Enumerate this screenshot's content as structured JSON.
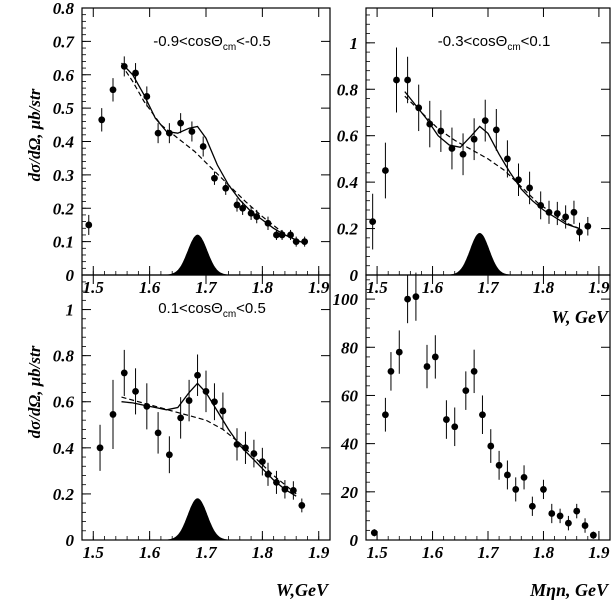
{
  "figure": {
    "ylabel_top": "dσ/dΩ, μb/str",
    "ylabel_bottom": "dσ/dΩ, μb/str"
  },
  "chart_data": [
    {
      "type": "scatter",
      "panel": "top-left",
      "annotation": {
        "pre": "-0.9<cosΘ",
        "sub": "cm",
        "post": "<-0.5"
      },
      "xlabel": "",
      "ylabel": "dσ/dΩ, μb/str",
      "xlim": [
        1.48,
        1.92
      ],
      "ylim": [
        0,
        0.8
      ],
      "xticks": [
        "1.5",
        "1.6",
        "1.7",
        "1.8",
        "1.9"
      ],
      "xtick_values": [
        1.5,
        1.6,
        1.7,
        1.8,
        1.9
      ],
      "yticks": [
        "0",
        "0.1",
        "0.2",
        "0.3",
        "0.4",
        "0.5",
        "0.6",
        "0.7",
        "0.8"
      ],
      "ytick_values": [
        0,
        0.1,
        0.2,
        0.3,
        0.4,
        0.5,
        0.6,
        0.7,
        0.8
      ],
      "points": [
        {
          "x": 1.492,
          "y": 0.15,
          "err": 0.03
        },
        {
          "x": 1.515,
          "y": 0.465,
          "err": 0.035
        },
        {
          "x": 1.535,
          "y": 0.555,
          "err": 0.035
        },
        {
          "x": 1.555,
          "y": 0.625,
          "err": 0.03
        },
        {
          "x": 1.575,
          "y": 0.605,
          "err": 0.03
        },
        {
          "x": 1.595,
          "y": 0.535,
          "err": 0.03
        },
        {
          "x": 1.615,
          "y": 0.425,
          "err": 0.03
        },
        {
          "x": 1.635,
          "y": 0.425,
          "err": 0.03
        },
        {
          "x": 1.655,
          "y": 0.455,
          "err": 0.03
        },
        {
          "x": 1.675,
          "y": 0.43,
          "err": 0.03
        },
        {
          "x": 1.695,
          "y": 0.385,
          "err": 0.03
        },
        {
          "x": 1.715,
          "y": 0.29,
          "err": 0.02
        },
        {
          "x": 1.735,
          "y": 0.26,
          "err": 0.02
        },
        {
          "x": 1.755,
          "y": 0.21,
          "err": 0.02
        },
        {
          "x": 1.765,
          "y": 0.2,
          "err": 0.02
        },
        {
          "x": 1.78,
          "y": 0.185,
          "err": 0.02
        },
        {
          "x": 1.79,
          "y": 0.175,
          "err": 0.02
        },
        {
          "x": 1.81,
          "y": 0.155,
          "err": 0.02
        },
        {
          "x": 1.825,
          "y": 0.12,
          "err": 0.015
        },
        {
          "x": 1.835,
          "y": 0.12,
          "err": 0.015
        },
        {
          "x": 1.85,
          "y": 0.12,
          "err": 0.015
        },
        {
          "x": 1.86,
          "y": 0.1,
          "err": 0.015
        },
        {
          "x": 1.875,
          "y": 0.1,
          "err": 0.015
        }
      ],
      "solid_curve": [
        [
          1.55,
          0.635
        ],
        [
          1.57,
          0.6
        ],
        [
          1.59,
          0.54
        ],
        [
          1.61,
          0.47
        ],
        [
          1.63,
          0.43
        ],
        [
          1.65,
          0.425
        ],
        [
          1.67,
          0.44
        ],
        [
          1.685,
          0.445
        ],
        [
          1.7,
          0.41
        ],
        [
          1.72,
          0.33
        ],
        [
          1.74,
          0.27
        ],
        [
          1.76,
          0.225
        ],
        [
          1.78,
          0.19
        ],
        [
          1.8,
          0.165
        ],
        [
          1.82,
          0.14
        ],
        [
          1.84,
          0.12
        ],
        [
          1.86,
          0.105
        ],
        [
          1.875,
          0.095
        ]
      ],
      "dashed_curve": [
        [
          1.55,
          0.63
        ],
        [
          1.57,
          0.58
        ],
        [
          1.59,
          0.52
        ],
        [
          1.62,
          0.45
        ],
        [
          1.65,
          0.41
        ],
        [
          1.68,
          0.37
        ],
        [
          1.71,
          0.32
        ],
        [
          1.74,
          0.27
        ],
        [
          1.77,
          0.22
        ],
        [
          1.8,
          0.175
        ],
        [
          1.83,
          0.135
        ],
        [
          1.86,
          0.105
        ],
        [
          1.875,
          0.095
        ]
      ],
      "peak": {
        "center": 1.685,
        "sigma": 0.017,
        "height": 0.12
      }
    },
    {
      "type": "scatter",
      "panel": "top-right",
      "annotation": {
        "pre": "-0.3<cosΘ",
        "sub": "cm",
        "post": "<0.1"
      },
      "xlabel": "W, GeV",
      "xlim": [
        1.48,
        1.92
      ],
      "ylim": [
        0,
        1.15
      ],
      "xticks": [
        "1.5",
        "1.6",
        "1.7",
        "1.8",
        "1.9"
      ],
      "xtick_values": [
        1.5,
        1.6,
        1.7,
        1.8,
        1.9
      ],
      "yticks": [
        "0",
        "0.2",
        "0.4",
        "0.6",
        "0.8",
        "1"
      ],
      "ytick_values": [
        0,
        0.2,
        0.4,
        0.6,
        0.8,
        1.0
      ],
      "points": [
        {
          "x": 1.492,
          "y": 0.23,
          "err": 0.12
        },
        {
          "x": 1.515,
          "y": 0.45,
          "err": 0.12
        },
        {
          "x": 1.535,
          "y": 0.84,
          "err": 0.14
        },
        {
          "x": 1.555,
          "y": 0.84,
          "err": 0.1
        },
        {
          "x": 1.575,
          "y": 0.72,
          "err": 0.1
        },
        {
          "x": 1.595,
          "y": 0.65,
          "err": 0.1
        },
        {
          "x": 1.615,
          "y": 0.62,
          "err": 0.09
        },
        {
          "x": 1.635,
          "y": 0.545,
          "err": 0.09
        },
        {
          "x": 1.655,
          "y": 0.52,
          "err": 0.09
        },
        {
          "x": 1.675,
          "y": 0.585,
          "err": 0.09
        },
        {
          "x": 1.695,
          "y": 0.665,
          "err": 0.09
        },
        {
          "x": 1.715,
          "y": 0.625,
          "err": 0.09
        },
        {
          "x": 1.735,
          "y": 0.5,
          "err": 0.08
        },
        {
          "x": 1.755,
          "y": 0.41,
          "err": 0.07
        },
        {
          "x": 1.775,
          "y": 0.375,
          "err": 0.07
        },
        {
          "x": 1.795,
          "y": 0.3,
          "err": 0.06
        },
        {
          "x": 1.81,
          "y": 0.27,
          "err": 0.05
        },
        {
          "x": 1.825,
          "y": 0.265,
          "err": 0.05
        },
        {
          "x": 1.84,
          "y": 0.25,
          "err": 0.05
        },
        {
          "x": 1.855,
          "y": 0.27,
          "err": 0.05
        },
        {
          "x": 1.865,
          "y": 0.185,
          "err": 0.04
        },
        {
          "x": 1.88,
          "y": 0.21,
          "err": 0.04
        }
      ],
      "solid_curve": [
        [
          1.55,
          0.79
        ],
        [
          1.57,
          0.73
        ],
        [
          1.59,
          0.67
        ],
        [
          1.61,
          0.6
        ],
        [
          1.63,
          0.56
        ],
        [
          1.65,
          0.55
        ],
        [
          1.67,
          0.6
        ],
        [
          1.685,
          0.64
        ],
        [
          1.7,
          0.61
        ],
        [
          1.72,
          0.52
        ],
        [
          1.74,
          0.44
        ],
        [
          1.76,
          0.37
        ],
        [
          1.78,
          0.32
        ],
        [
          1.8,
          0.28
        ],
        [
          1.82,
          0.25
        ],
        [
          1.84,
          0.22
        ],
        [
          1.865,
          0.2
        ]
      ],
      "dashed_curve": [
        [
          1.55,
          0.77
        ],
        [
          1.58,
          0.7
        ],
        [
          1.61,
          0.63
        ],
        [
          1.64,
          0.58
        ],
        [
          1.67,
          0.54
        ],
        [
          1.7,
          0.5
        ],
        [
          1.73,
          0.45
        ],
        [
          1.76,
          0.38
        ],
        [
          1.79,
          0.31
        ],
        [
          1.82,
          0.26
        ],
        [
          1.845,
          0.22
        ],
        [
          1.865,
          0.2
        ]
      ],
      "peak": {
        "center": 1.685,
        "sigma": 0.017,
        "height": 0.18
      }
    },
    {
      "type": "scatter",
      "panel": "bottom-left",
      "annotation": {
        "pre": "0.1<cosΘ",
        "sub": "cm",
        "post": "<0.5"
      },
      "xlabel": "W,GeV",
      "ylabel": "dσ/dΩ, μb/str",
      "xlim": [
        1.48,
        1.92
      ],
      "ylim": [
        0,
        1.15
      ],
      "xticks": [
        "1.5",
        "1.6",
        "1.7",
        "1.8",
        "1.9"
      ],
      "xtick_values": [
        1.5,
        1.6,
        1.7,
        1.8,
        1.9
      ],
      "yticks": [
        "0",
        "0.2",
        "0.4",
        "0.6",
        "0.8",
        "1"
      ],
      "ytick_values": [
        0,
        0.2,
        0.4,
        0.6,
        0.8,
        1.0
      ],
      "points": [
        {
          "x": 1.512,
          "y": 0.4,
          "err": 0.1
        },
        {
          "x": 1.535,
          "y": 0.545,
          "err": 0.15
        },
        {
          "x": 1.555,
          "y": 0.725,
          "err": 0.1
        },
        {
          "x": 1.575,
          "y": 0.645,
          "err": 0.1
        },
        {
          "x": 1.595,
          "y": 0.58,
          "err": 0.1
        },
        {
          "x": 1.615,
          "y": 0.465,
          "err": 0.09
        },
        {
          "x": 1.635,
          "y": 0.37,
          "err": 0.08
        },
        {
          "x": 1.655,
          "y": 0.53,
          "err": 0.09
        },
        {
          "x": 1.67,
          "y": 0.605,
          "err": 0.09
        },
        {
          "x": 1.685,
          "y": 0.715,
          "err": 0.09
        },
        {
          "x": 1.7,
          "y": 0.645,
          "err": 0.09
        },
        {
          "x": 1.715,
          "y": 0.6,
          "err": 0.08
        },
        {
          "x": 1.73,
          "y": 0.56,
          "err": 0.08
        },
        {
          "x": 1.755,
          "y": 0.415,
          "err": 0.07
        },
        {
          "x": 1.77,
          "y": 0.4,
          "err": 0.07
        },
        {
          "x": 1.785,
          "y": 0.375,
          "err": 0.06
        },
        {
          "x": 1.8,
          "y": 0.34,
          "err": 0.06
        },
        {
          "x": 1.81,
          "y": 0.285,
          "err": 0.05
        },
        {
          "x": 1.825,
          "y": 0.25,
          "err": 0.05
        },
        {
          "x": 1.84,
          "y": 0.22,
          "err": 0.04
        },
        {
          "x": 1.855,
          "y": 0.215,
          "err": 0.04
        },
        {
          "x": 1.87,
          "y": 0.15,
          "err": 0.03
        }
      ],
      "solid_curve": [
        [
          1.55,
          0.6
        ],
        [
          1.57,
          0.595
        ],
        [
          1.59,
          0.585
        ],
        [
          1.61,
          0.575
        ],
        [
          1.63,
          0.565
        ],
        [
          1.65,
          0.575
        ],
        [
          1.67,
          0.64
        ],
        [
          1.685,
          0.68
        ],
        [
          1.7,
          0.64
        ],
        [
          1.72,
          0.56
        ],
        [
          1.74,
          0.48
        ],
        [
          1.76,
          0.41
        ],
        [
          1.78,
          0.36
        ],
        [
          1.8,
          0.31
        ],
        [
          1.82,
          0.26
        ],
        [
          1.84,
          0.22
        ],
        [
          1.86,
          0.19
        ]
      ],
      "dashed_curve": [
        [
          1.55,
          0.62
        ],
        [
          1.58,
          0.6
        ],
        [
          1.61,
          0.58
        ],
        [
          1.64,
          0.56
        ],
        [
          1.67,
          0.54
        ],
        [
          1.7,
          0.52
        ],
        [
          1.73,
          0.48
        ],
        [
          1.76,
          0.42
        ],
        [
          1.79,
          0.35
        ],
        [
          1.82,
          0.28
        ],
        [
          1.845,
          0.23
        ],
        [
          1.86,
          0.2
        ]
      ],
      "peak": {
        "center": 1.685,
        "sigma": 0.017,
        "height": 0.18
      }
    },
    {
      "type": "scatter",
      "panel": "bottom-right",
      "xlabel": "Mηn, GeV",
      "xlim": [
        1.48,
        1.92
      ],
      "ylim": [
        0,
        110
      ],
      "xticks": [
        "1.5",
        "1.6",
        "1.7",
        "1.8",
        "1.9"
      ],
      "xtick_values": [
        1.5,
        1.6,
        1.7,
        1.8,
        1.9
      ],
      "yticks": [
        "0",
        "20",
        "40",
        "60",
        "80",
        "100"
      ],
      "ytick_values": [
        0,
        20,
        40,
        60,
        80,
        100
      ],
      "points": [
        {
          "x": 1.495,
          "y": 3,
          "err": 1.5
        },
        {
          "x": 1.515,
          "y": 52,
          "err": 7
        },
        {
          "x": 1.525,
          "y": 70,
          "err": 8
        },
        {
          "x": 1.54,
          "y": 78,
          "err": 9
        },
        {
          "x": 1.555,
          "y": 100,
          "err": 10
        },
        {
          "x": 1.57,
          "y": 101,
          "err": 10
        },
        {
          "x": 1.59,
          "y": 72,
          "err": 9
        },
        {
          "x": 1.605,
          "y": 76,
          "err": 9
        },
        {
          "x": 1.625,
          "y": 50,
          "err": 8
        },
        {
          "x": 1.64,
          "y": 47,
          "err": 8
        },
        {
          "x": 1.66,
          "y": 62,
          "err": 8
        },
        {
          "x": 1.675,
          "y": 70,
          "err": 9
        },
        {
          "x": 1.69,
          "y": 52,
          "err": 8
        },
        {
          "x": 1.705,
          "y": 39,
          "err": 7
        },
        {
          "x": 1.72,
          "y": 31,
          "err": 6
        },
        {
          "x": 1.735,
          "y": 27,
          "err": 6
        },
        {
          "x": 1.75,
          "y": 21,
          "err": 5
        },
        {
          "x": 1.765,
          "y": 26,
          "err": 5
        },
        {
          "x": 1.78,
          "y": 14,
          "err": 4
        },
        {
          "x": 1.8,
          "y": 21,
          "err": 4
        },
        {
          "x": 1.815,
          "y": 11,
          "err": 4
        },
        {
          "x": 1.83,
          "y": 10,
          "err": 3
        },
        {
          "x": 1.845,
          "y": 7,
          "err": 3
        },
        {
          "x": 1.86,
          "y": 12,
          "err": 3
        },
        {
          "x": 1.875,
          "y": 6,
          "err": 3
        },
        {
          "x": 1.89,
          "y": 2,
          "err": 1.5
        }
      ]
    }
  ]
}
